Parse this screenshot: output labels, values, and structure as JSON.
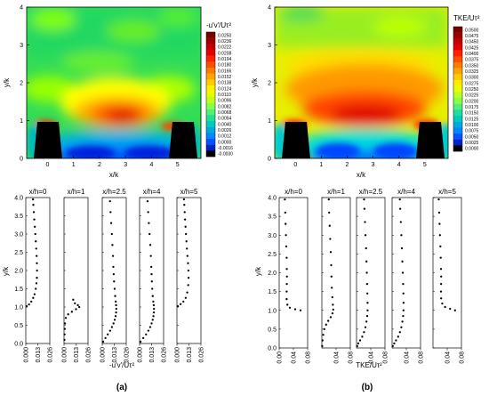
{
  "figure": {
    "label_a": "(a)",
    "label_b": "(b)"
  },
  "chart_data": [
    {
      "type": "heatmap",
      "title": "",
      "xlabel": "x/k",
      "ylabel": "y/k",
      "xlim": [
        -0.8,
        5.9
      ],
      "ylim": [
        0,
        4
      ],
      "xticks": [
        "0",
        "1",
        "2",
        "3",
        "4",
        "5"
      ],
      "yticks": [
        "0",
        "1",
        "2",
        "3",
        "4"
      ],
      "colorbar_title": "-u'v'/Uτ²",
      "colorbar_values": [
        "0.0250",
        "0.0236",
        "0.0222",
        "0.0208",
        "0.0194",
        "0.0180",
        "0.0166",
        "0.0152",
        "0.0138",
        "0.0124",
        "0.0110",
        "0.0096",
        "0.0082",
        "0.0068",
        "0.0054",
        "0.0040",
        "0.0026",
        "0.0012",
        "0.0000",
        "-0.0016",
        "-0.0030"
      ],
      "obstacles": [
        {
          "x_start": -0.6,
          "x_end": 0.6,
          "height": 1.0
        },
        {
          "x_start": 4.4,
          "x_end": 5.6,
          "height": 1.0
        }
      ],
      "colors": {
        "high": "#8b0000",
        "mid": "#ffff00",
        "low": "#0000ff",
        "min": "#000000"
      }
    },
    {
      "type": "heatmap",
      "title": "",
      "xlabel": "x/k",
      "ylabel": "y/k",
      "xlim": [
        -0.8,
        5.9
      ],
      "ylim": [
        0,
        4
      ],
      "xticks": [
        "0",
        "1",
        "2",
        "3",
        "4",
        "5"
      ],
      "yticks": [
        "0",
        "1",
        "2",
        "3",
        "4"
      ],
      "colorbar_title": "TKE/Uτ²",
      "colorbar_values": [
        "0.0500",
        "0.0475",
        "0.0450",
        "0.0425",
        "0.0400",
        "0.0375",
        "0.0350",
        "0.0325",
        "0.0300",
        "0.0275",
        "0.0250",
        "0.0225",
        "0.0200",
        "0.0175",
        "0.0150",
        "0.0125",
        "0.0100",
        "0.0075",
        "0.0050",
        "0.0025",
        "0.0000"
      ],
      "obstacles": [
        {
          "x_start": -0.6,
          "x_end": 0.6,
          "height": 1.0
        },
        {
          "x_start": 4.4,
          "x_end": 5.6,
          "height": 1.0
        }
      ]
    },
    {
      "type": "scatter",
      "xlabel": "-u'v'/Uτ²",
      "ylabel": "y/k",
      "ylim": [
        0,
        4
      ],
      "yticks": [
        "0.0",
        "0.5",
        "1.0",
        "1.5",
        "2.0",
        "2.5",
        "3.0",
        "3.5",
        "4.0"
      ],
      "xticks": [
        "0.000",
        "0.013",
        "0.026"
      ],
      "xlim": [
        0,
        0.026
      ],
      "profiles": [
        {
          "name": "x/h=0",
          "points": [
            [
              0.001,
              1.02
            ],
            [
              0.0035,
              1.07
            ],
            [
              0.006,
              1.15
            ],
            [
              0.008,
              1.25
            ],
            [
              0.0095,
              1.35
            ],
            [
              0.0108,
              1.5
            ],
            [
              0.0115,
              1.65
            ],
            [
              0.012,
              1.8
            ],
            [
              0.0122,
              2.0
            ],
            [
              0.012,
              2.2
            ],
            [
              0.0117,
              2.4
            ],
            [
              0.0113,
              2.6
            ],
            [
              0.0108,
              2.8
            ],
            [
              0.0103,
              3.0
            ],
            [
              0.0098,
              3.2
            ],
            [
              0.0092,
              3.4
            ],
            [
              0.0087,
              3.6
            ],
            [
              0.0082,
              3.8
            ],
            [
              0.0078,
              3.95
            ]
          ]
        },
        {
          "name": "x/h=1",
          "points": [
            [
              0.0005,
              0.1
            ],
            [
              0.0006,
              0.25
            ],
            [
              0.0008,
              0.4
            ],
            [
              0.001,
              0.55
            ],
            [
              0.002,
              0.7
            ],
            [
              0.0045,
              0.8
            ],
            [
              0.0085,
              0.87
            ],
            [
              0.013,
              0.94
            ],
            [
              0.0165,
              1.0
            ],
            [
              0.015,
              1.05
            ],
            [
              0.0118,
              1.1
            ],
            [
              0.01,
              1.2
            ]
          ]
        },
        {
          "name": "x/h=2.5",
          "points": [
            [
              0.001,
              0.05
            ],
            [
              0.0035,
              0.15
            ],
            [
              0.006,
              0.25
            ],
            [
              0.0085,
              0.35
            ],
            [
              0.0105,
              0.45
            ],
            [
              0.0122,
              0.55
            ],
            [
              0.0135,
              0.65
            ],
            [
              0.0145,
              0.75
            ],
            [
              0.015,
              0.85
            ],
            [
              0.0152,
              0.95
            ],
            [
              0.015,
              1.05
            ],
            [
              0.0146,
              1.15
            ],
            [
              0.014,
              1.3
            ],
            [
              0.0134,
              1.5
            ],
            [
              0.0128,
              1.7
            ],
            [
              0.0124,
              1.9
            ],
            [
              0.012,
              2.1
            ],
            [
              0.0116,
              2.4
            ],
            [
              0.011,
              2.7
            ],
            [
              0.0104,
              3.0
            ],
            [
              0.0097,
              3.3
            ],
            [
              0.009,
              3.6
            ],
            [
              0.0084,
              3.9
            ]
          ]
        },
        {
          "name": "x/h=4",
          "points": [
            [
              0.001,
              0.05
            ],
            [
              0.004,
              0.15
            ],
            [
              0.007,
              0.25
            ],
            [
              0.0095,
              0.35
            ],
            [
              0.0115,
              0.45
            ],
            [
              0.013,
              0.55
            ],
            [
              0.0142,
              0.65
            ],
            [
              0.015,
              0.75
            ],
            [
              0.0155,
              0.85
            ],
            [
              0.0156,
              0.95
            ],
            [
              0.0153,
              1.05
            ],
            [
              0.0148,
              1.15
            ],
            [
              0.0142,
              1.3
            ],
            [
              0.0137,
              1.5
            ],
            [
              0.0133,
              1.7
            ],
            [
              0.013,
              1.9
            ],
            [
              0.0127,
              2.1
            ],
            [
              0.0122,
              2.4
            ],
            [
              0.0116,
              2.7
            ],
            [
              0.0108,
              3.0
            ],
            [
              0.01,
              3.3
            ],
            [
              0.0093,
              3.6
            ],
            [
              0.0086,
              3.9
            ]
          ]
        },
        {
          "name": "x/h=5",
          "points": [
            [
              0.001,
              1.02
            ],
            [
              0.004,
              1.08
            ],
            [
              0.007,
              1.15
            ],
            [
              0.0095,
              1.25
            ],
            [
              0.0112,
              1.4
            ],
            [
              0.0122,
              1.6
            ],
            [
              0.0126,
              1.8
            ],
            [
              0.0124,
              2.0
            ],
            [
              0.012,
              2.2
            ],
            [
              0.0114,
              2.4
            ],
            [
              0.0108,
              2.6
            ],
            [
              0.0103,
              2.8
            ],
            [
              0.0098,
              3.0
            ],
            [
              0.0093,
              3.2
            ],
            [
              0.0088,
              3.4
            ],
            [
              0.0084,
              3.6
            ],
            [
              0.008,
              3.8
            ],
            [
              0.0076,
              3.95
            ]
          ]
        }
      ]
    },
    {
      "type": "scatter",
      "xlabel": "TKE/Uτ²",
      "ylabel": "y/k",
      "ylim": [
        0,
        4
      ],
      "yticks": [
        "0.0",
        "0.5",
        "1.0",
        "1.5",
        "2.0",
        "2.5",
        "3.0",
        "3.5",
        "4.0"
      ],
      "first_xticks": [
        "0.00",
        "0.04",
        "0.08"
      ],
      "xticks": [
        "0.04",
        "0.08"
      ],
      "xlim": [
        0,
        0.08
      ],
      "profiles": [
        {
          "name": "x/h=0",
          "points": [
            [
              0.06,
              1.0
            ],
            [
              0.045,
              1.03
            ],
            [
              0.03,
              1.07
            ],
            [
              0.023,
              1.15
            ],
            [
              0.021,
              1.3
            ],
            [
              0.021,
              1.5
            ],
            [
              0.0215,
              1.7
            ],
            [
              0.0218,
              1.9
            ],
            [
              0.0215,
              2.1
            ],
            [
              0.021,
              2.4
            ],
            [
              0.02,
              2.7
            ],
            [
              0.019,
              3.0
            ],
            [
              0.018,
              3.3
            ],
            [
              0.017,
              3.6
            ],
            [
              0.016,
              3.95
            ]
          ]
        },
        {
          "name": "x/h=1",
          "points": [
            [
              0.001,
              0.05
            ],
            [
              0.002,
              0.2
            ],
            [
              0.004,
              0.35
            ],
            [
              0.007,
              0.5
            ],
            [
              0.012,
              0.62
            ],
            [
              0.018,
              0.72
            ],
            [
              0.025,
              0.82
            ],
            [
              0.03,
              0.92
            ],
            [
              0.032,
              1.02
            ],
            [
              0.031,
              1.15
            ],
            [
              0.0295,
              1.35
            ],
            [
              0.028,
              1.6
            ],
            [
              0.027,
              1.9
            ],
            [
              0.0262,
              2.2
            ],
            [
              0.025,
              2.55
            ],
            [
              0.0235,
              2.9
            ],
            [
              0.022,
              3.25
            ],
            [
              0.0205,
              3.6
            ],
            [
              0.0195,
              3.95
            ]
          ]
        },
        {
          "name": "x/h=2.5",
          "points": [
            [
              0.002,
              0.05
            ],
            [
              0.005,
              0.12
            ],
            [
              0.01,
              0.2
            ],
            [
              0.016,
              0.3
            ],
            [
              0.021,
              0.42
            ],
            [
              0.025,
              0.55
            ],
            [
              0.028,
              0.7
            ],
            [
              0.03,
              0.85
            ],
            [
              0.031,
              1.0
            ],
            [
              0.031,
              1.2
            ],
            [
              0.0305,
              1.45
            ],
            [
              0.0298,
              1.7
            ],
            [
              0.029,
              2.0
            ],
            [
              0.028,
              2.3
            ],
            [
              0.0268,
              2.65
            ],
            [
              0.0252,
              3.0
            ],
            [
              0.0238,
              3.35
            ],
            [
              0.0222,
              3.7
            ],
            [
              0.0212,
              3.95
            ]
          ]
        },
        {
          "name": "x/h=4",
          "points": [
            [
              0.002,
              0.05
            ],
            [
              0.006,
              0.12
            ],
            [
              0.011,
              0.2
            ],
            [
              0.017,
              0.3
            ],
            [
              0.022,
              0.42
            ],
            [
              0.026,
              0.55
            ],
            [
              0.029,
              0.7
            ],
            [
              0.031,
              0.85
            ],
            [
              0.032,
              1.0
            ],
            [
              0.0322,
              1.2
            ],
            [
              0.0318,
              1.45
            ],
            [
              0.031,
              1.7
            ],
            [
              0.03,
              2.0
            ],
            [
              0.0288,
              2.3
            ],
            [
              0.0275,
              2.65
            ],
            [
              0.026,
              3.0
            ],
            [
              0.0245,
              3.35
            ],
            [
              0.0228,
              3.7
            ],
            [
              0.0218,
              3.95
            ]
          ]
        },
        {
          "name": "x/h=5",
          "points": [
            [
              0.062,
              1.0
            ],
            [
              0.048,
              1.04
            ],
            [
              0.034,
              1.09
            ],
            [
              0.026,
              1.18
            ],
            [
              0.023,
              1.32
            ],
            [
              0.0225,
              1.5
            ],
            [
              0.0228,
              1.7
            ],
            [
              0.023,
              1.9
            ],
            [
              0.0226,
              2.1
            ],
            [
              0.0218,
              2.4
            ],
            [
              0.0208,
              2.7
            ],
            [
              0.0196,
              3.0
            ],
            [
              0.0185,
              3.3
            ],
            [
              0.0173,
              3.6
            ],
            [
              0.0162,
              3.95
            ]
          ]
        }
      ]
    }
  ]
}
